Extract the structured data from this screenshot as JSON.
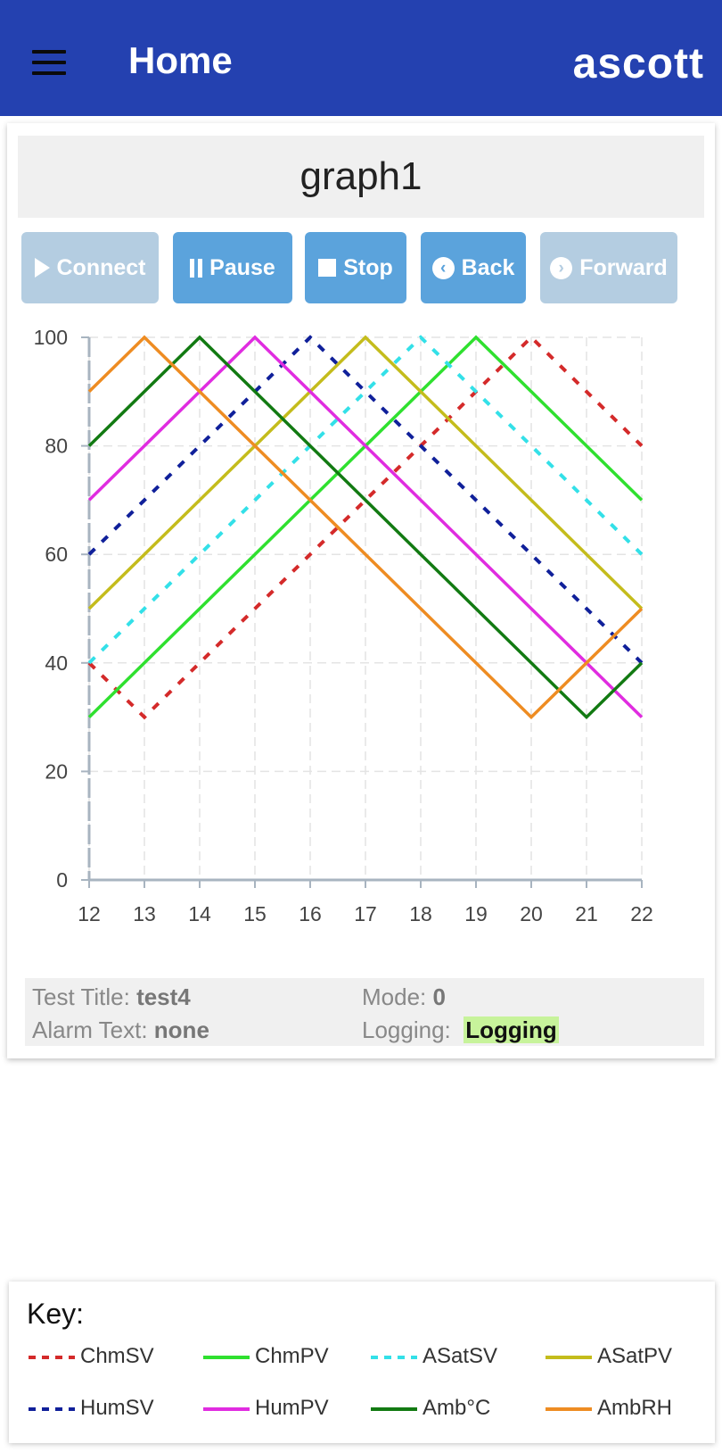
{
  "header": {
    "title": "Home",
    "brand": "ascott"
  },
  "graph": {
    "title": "graph1"
  },
  "buttons": [
    {
      "label": "Connect",
      "icon": "play-icon",
      "enabled": false
    },
    {
      "label": "Pause",
      "icon": "pause-icon",
      "enabled": true
    },
    {
      "label": "Stop",
      "icon": "stop-icon",
      "enabled": true
    },
    {
      "label": "Back",
      "icon": "chevron-left-circle-icon",
      "enabled": true
    },
    {
      "label": "Forward",
      "icon": "chevron-right-circle-icon",
      "enabled": false
    }
  ],
  "status": {
    "test_title_label": "Test Title:",
    "test_title_value": "test4",
    "alarm_label": "Alarm Text:",
    "alarm_value": "none",
    "mode_label": "Mode:",
    "mode_value": "0",
    "logging_label": "Logging:",
    "logging_value": "Logging"
  },
  "key": {
    "title": "Key:",
    "items": [
      {
        "name": "ChmSV",
        "color": "#d42a2a",
        "dashed": true
      },
      {
        "name": "ChmPV",
        "color": "#2fe02f",
        "dashed": false
      },
      {
        "name": "ASatSV",
        "color": "#33e0e8",
        "dashed": true
      },
      {
        "name": "ASatPV",
        "color": "#c4bc1c",
        "dashed": false
      },
      {
        "name": "HumSV",
        "color": "#10209a",
        "dashed": true
      },
      {
        "name": "HumPV",
        "color": "#e02ce0",
        "dashed": false
      },
      {
        "name": "Amb°C",
        "color": "#127a12",
        "dashed": false
      },
      {
        "name": "AmbRH",
        "color": "#ee8c22",
        "dashed": false
      }
    ]
  },
  "chart_data": {
    "type": "line",
    "x": [
      12,
      13,
      14,
      15,
      16,
      17,
      18,
      19,
      20,
      21,
      22
    ],
    "xlim": [
      12,
      22
    ],
    "ylim": [
      0,
      100
    ],
    "x_ticks": [
      "12",
      "13",
      "14",
      "15",
      "16",
      "17",
      "18",
      "19",
      "20",
      "21",
      "22"
    ],
    "y_ticks": [
      "0",
      "20",
      "40",
      "60",
      "80",
      "100"
    ],
    "grid": true,
    "legend": "bottom",
    "series": [
      {
        "name": "ChmSV",
        "color": "#d42a2a",
        "dashed": true,
        "values": [
          40,
          30,
          40,
          50,
          60,
          70,
          80,
          90,
          100,
          90,
          80
        ]
      },
      {
        "name": "ChmPV",
        "color": "#2fe02f",
        "dashed": false,
        "values": [
          30,
          40,
          50,
          60,
          70,
          80,
          90,
          100,
          90,
          80,
          70
        ]
      },
      {
        "name": "ASatSV",
        "color": "#33e0e8",
        "dashed": true,
        "values": [
          40,
          50,
          60,
          70,
          80,
          90,
          100,
          90,
          80,
          70,
          60
        ]
      },
      {
        "name": "ASatPV",
        "color": "#c4bc1c",
        "dashed": false,
        "values": [
          50,
          60,
          70,
          80,
          90,
          100,
          90,
          80,
          70,
          60,
          50
        ]
      },
      {
        "name": "HumSV",
        "color": "#10209a",
        "dashed": true,
        "values": [
          60,
          70,
          80,
          90,
          100,
          90,
          80,
          70,
          60,
          50,
          40
        ]
      },
      {
        "name": "HumPV",
        "color": "#e02ce0",
        "dashed": false,
        "values": [
          70,
          80,
          90,
          100,
          90,
          80,
          70,
          60,
          50,
          40,
          30
        ]
      },
      {
        "name": "Amb°C",
        "color": "#127a12",
        "dashed": false,
        "values": [
          80,
          90,
          100,
          90,
          80,
          70,
          60,
          50,
          40,
          30,
          40
        ]
      },
      {
        "name": "AmbRH",
        "color": "#ee8c22",
        "dashed": false,
        "values": [
          90,
          100,
          90,
          80,
          70,
          60,
          50,
          40,
          30,
          40,
          50
        ]
      }
    ]
  }
}
